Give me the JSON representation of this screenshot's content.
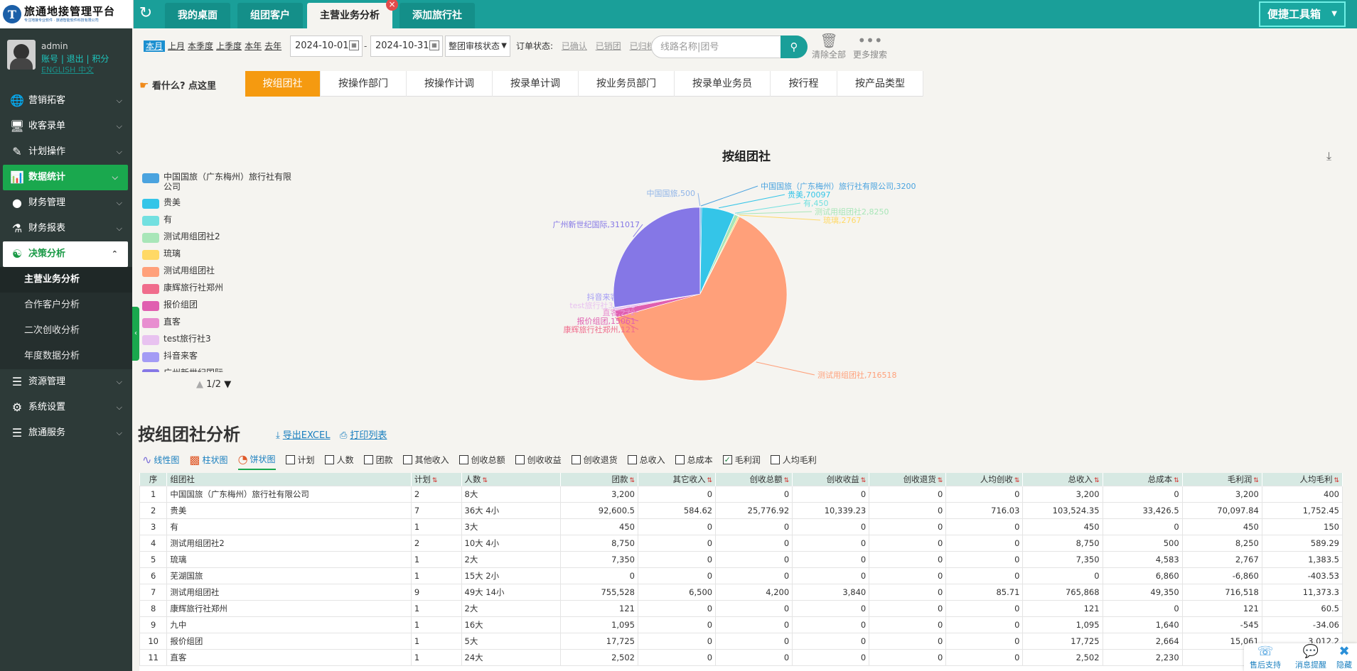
{
  "header": {
    "logo_title": "旅通地接管理平台",
    "logo_sub": "专注地接专业软件 · 旅通智能软件科技有限公司",
    "tabs": [
      {
        "label": "我的桌面"
      },
      {
        "label": "组团客户"
      },
      {
        "label": "主营业务分析"
      },
      {
        "label": "添加旅行社"
      }
    ],
    "toolbox_label": "便捷工具箱"
  },
  "user": {
    "name": "admin",
    "links": "账号 | 退出 | 积分",
    "lang": "ENGLISH  中文"
  },
  "menu": [
    {
      "label": "营销拓客",
      "icon": "globe-icon"
    },
    {
      "label": "收客录单",
      "icon": "monitor-icon"
    },
    {
      "label": "计划操作",
      "icon": "edit-icon"
    },
    {
      "label": "数据统计",
      "icon": "bar-chart-icon"
    },
    {
      "label": "财务管理",
      "icon": "coins-icon"
    },
    {
      "label": "财务报表",
      "icon": "flask-icon"
    },
    {
      "label": "决策分析",
      "icon": "user-analysis-icon"
    }
  ],
  "submenu": [
    {
      "label": "主营业务分析"
    },
    {
      "label": "合作客户分析"
    },
    {
      "label": "二次创收分析"
    },
    {
      "label": "年度数据分析"
    }
  ],
  "menu_bottom": [
    {
      "label": "资源管理"
    },
    {
      "label": "系统设置"
    },
    {
      "label": "旅通服务"
    }
  ],
  "filters": {
    "quick": [
      "本月",
      "上月",
      "本季度",
      "上季度",
      "本年",
      "去年"
    ],
    "date_from": "2024-10-01",
    "date_to": "2024-10-31",
    "dash": "-",
    "audit_select": "整团审核状态",
    "order_status_label": "订单状态:",
    "order_status_options": [
      "已确认",
      "已销团",
      "已归档"
    ],
    "search_placeholder": "线路名称|团号",
    "clear_all": "清除全部",
    "more_search": "更多搜索"
  },
  "help_text": "看什么? 点这里",
  "subtabs": [
    "按组团社",
    "按操作部门",
    "按操作计调",
    "按录单计调",
    "按业务员部门",
    "按录单业务员",
    "按行程",
    "按产品类型"
  ],
  "colors": {
    "accent": "#1a9f99",
    "menu_active": "#1aa84e",
    "subtab_active": "#f59a10"
  },
  "chart_data": {
    "type": "pie",
    "title": "按组团社",
    "series": [
      {
        "name": "中国国旅（广东梅州）旅行社有限公司",
        "value": 3200,
        "color": "#4aa3df"
      },
      {
        "name": "贵美",
        "value": 70097,
        "color": "#34c5e8"
      },
      {
        "name": "有",
        "value": 450,
        "color": "#72e0e0"
      },
      {
        "name": "测试用组团社2",
        "value": 8250,
        "color": "#a8e6b8"
      },
      {
        "name": "琉璃",
        "value": 2767,
        "color": "#ffd966"
      },
      {
        "name": "测试用组团社",
        "value": 716518,
        "color": "#ffa07a"
      },
      {
        "name": "康辉旅行社郑州",
        "value": 121,
        "color": "#f06c8c"
      },
      {
        "name": "报价组团",
        "value": 15061,
        "color": "#e05fb0"
      },
      {
        "name": "直客",
        "value": 272,
        "color": "#e88ed0"
      },
      {
        "name": "test旅行社3",
        "value": 4800,
        "color": "#e8c2f0"
      },
      {
        "name": "抖音来客",
        "value": 717,
        "color": "#a39bf5"
      },
      {
        "name": "广州新世纪国际",
        "value": 311017,
        "color": "#8577e6"
      },
      {
        "name": "中国国旅",
        "value": 500,
        "color": "#8fb4e8"
      }
    ],
    "slice_labels": [
      "中国国旅（广东梅州）旅行社有限公司,3200",
      "贵美,70097",
      "有,450",
      "测试用组团社2,8250",
      "琉璃,2767",
      "测试用组团社,716518",
      "康辉旅行社郑州,121",
      "报价组团,15061",
      "直客,272",
      "test旅行社3,4800",
      "抖音来客,717",
      "广州新世纪国际,311017",
      "中国国旅,500"
    ],
    "legend_visible": [
      "中国国旅（广东梅州）旅行社有限公司",
      "贵美",
      "有",
      "测试用组团社2",
      "琉璃",
      "测试用组团社",
      "康辉旅行社郑州",
      "报价组团",
      "直客",
      "test旅行社3",
      "抖音来客",
      "广州新世纪国际"
    ],
    "legend_placement": "left",
    "legend_page": "1/2"
  },
  "analysis": {
    "title": "按组团社分析",
    "export": "导出EXCEL",
    "print": "打印列表",
    "views": [
      "线性图",
      "柱状图",
      "饼状图"
    ],
    "metrics": [
      {
        "label": "计划",
        "checked": false
      },
      {
        "label": "人数",
        "checked": false
      },
      {
        "label": "团款",
        "checked": false
      },
      {
        "label": "其他收入",
        "checked": false
      },
      {
        "label": "创收总额",
        "checked": false
      },
      {
        "label": "创收收益",
        "checked": false
      },
      {
        "label": "创收退货",
        "checked": false
      },
      {
        "label": "总收入",
        "checked": false
      },
      {
        "label": "总成本",
        "checked": false
      },
      {
        "label": "毛利润",
        "checked": true
      },
      {
        "label": "人均毛利",
        "checked": false
      }
    ]
  },
  "table": {
    "headers": [
      "序",
      "组团社",
      "计划",
      "人数",
      "团款",
      "其它收入",
      "创收总额",
      "创收收益",
      "创收退货",
      "人均创收",
      "总收入",
      "总成本",
      "毛利润",
      "人均毛利"
    ],
    "rows": [
      [
        "1",
        "中国国旅（广东梅州）旅行社有限公司",
        "2",
        "8大",
        "3,200",
        "0",
        "0",
        "0",
        "0",
        "0",
        "3,200",
        "0",
        "3,200",
        "400"
      ],
      [
        "2",
        "贵美",
        "7",
        "36大 4小",
        "92,600.5",
        "584.62",
        "25,776.92",
        "10,339.23",
        "0",
        "716.03",
        "103,524.35",
        "33,426.5",
        "70,097.84",
        "1,752.45"
      ],
      [
        "3",
        "有",
        "1",
        "3大",
        "450",
        "0",
        "0",
        "0",
        "0",
        "0",
        "450",
        "0",
        "450",
        "150"
      ],
      [
        "4",
        "测试用组团社2",
        "2",
        "10大 4小",
        "8,750",
        "0",
        "0",
        "0",
        "0",
        "0",
        "8,750",
        "500",
        "8,250",
        "589.29"
      ],
      [
        "5",
        "琉璃",
        "1",
        "2大",
        "7,350",
        "0",
        "0",
        "0",
        "0",
        "0",
        "7,350",
        "4,583",
        "2,767",
        "1,383.5"
      ],
      [
        "6",
        "芜湖国旅",
        "1",
        "15大 2小",
        "0",
        "0",
        "0",
        "0",
        "0",
        "0",
        "0",
        "6,860",
        "-6,860",
        "-403.53"
      ],
      [
        "7",
        "测试用组团社",
        "9",
        "49大 14小",
        "755,528",
        "6,500",
        "4,200",
        "3,840",
        "0",
        "85.71",
        "765,868",
        "49,350",
        "716,518",
        "11,373.3"
      ],
      [
        "8",
        "康辉旅行社郑州",
        "1",
        "2大",
        "121",
        "0",
        "0",
        "0",
        "0",
        "0",
        "121",
        "0",
        "121",
        "60.5"
      ],
      [
        "9",
        "九中",
        "1",
        "16大",
        "1,095",
        "0",
        "0",
        "0",
        "0",
        "0",
        "1,095",
        "1,640",
        "-545",
        "-34.06"
      ],
      [
        "10",
        "报价组团",
        "1",
        "5大",
        "17,725",
        "0",
        "0",
        "0",
        "0",
        "0",
        "17,725",
        "2,664",
        "15,061",
        "3,012.2"
      ],
      [
        "11",
        "直客",
        "1",
        "24大",
        "2,502",
        "0",
        "0",
        "0",
        "0",
        "0",
        "2,502",
        "2,230",
        "",
        ""
      ]
    ]
  },
  "float": {
    "support": "售后支持",
    "notice": "消息提醒",
    "hide": "隐藏"
  }
}
